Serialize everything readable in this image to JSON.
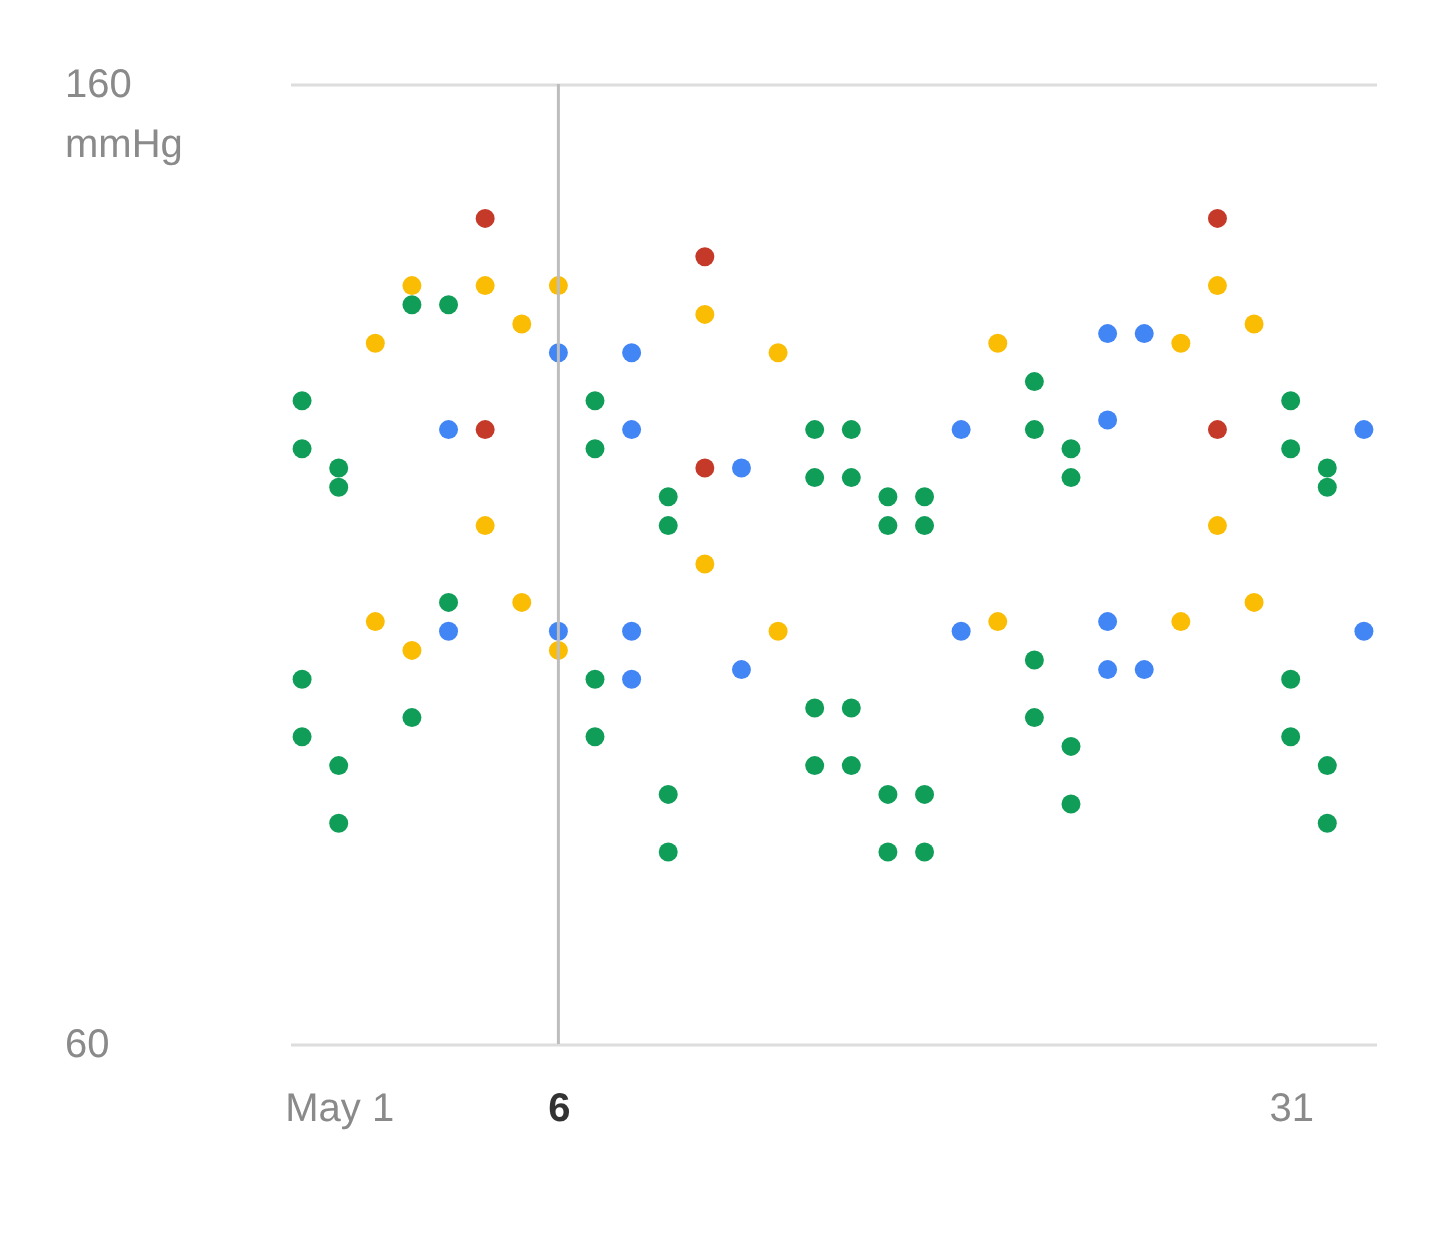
{
  "chart_data": {
    "type": "scatter",
    "ylabel": "mmHg",
    "ylim": [
      60,
      160
    ],
    "yticks": [
      60,
      160
    ],
    "marker": "circle",
    "categories": [
      null,
      "May 1",
      null,
      null,
      null,
      null,
      null,
      "6",
      null,
      null,
      null,
      null,
      null,
      null,
      null,
      null,
      null,
      null,
      null,
      null,
      null,
      null,
      null,
      null,
      null,
      null,
      null,
      "31",
      null,
      null
    ],
    "ref_lines": [
      {
        "axis": "x",
        "value": "6",
        "color": "#bdbdbd"
      }
    ],
    "series": [
      {
        "color": "#0f9d58",
        "values": [
          127,
          120,
          null,
          137,
          137,
          null,
          null,
          null,
          127,
          null,
          117,
          null,
          null,
          null,
          124,
          124,
          117,
          117,
          null,
          null,
          129,
          122,
          null,
          null,
          null,
          null,
          null,
          127,
          120,
          null
        ]
      },
      {
        "color": "#0f9d58",
        "values": [
          122,
          118,
          null,
          null,
          null,
          null,
          null,
          null,
          122,
          null,
          114,
          null,
          null,
          null,
          119,
          119,
          114,
          114,
          null,
          null,
          124,
          119,
          null,
          null,
          null,
          null,
          null,
          122,
          118,
          null
        ]
      },
      {
        "color": "#0f9d58",
        "values": [
          98,
          89,
          null,
          94,
          106,
          null,
          null,
          null,
          98,
          null,
          86,
          null,
          null,
          null,
          95,
          95,
          86,
          86,
          null,
          null,
          100,
          91,
          null,
          null,
          null,
          null,
          null,
          98,
          89,
          null
        ]
      },
      {
        "color": "#0f9d58",
        "values": [
          92,
          83,
          null,
          null,
          null,
          null,
          null,
          null,
          92,
          null,
          80,
          null,
          null,
          null,
          89,
          89,
          80,
          80,
          null,
          null,
          94,
          85,
          null,
          null,
          null,
          null,
          null,
          92,
          83,
          null
        ]
      },
      {
        "color": "#4285f4",
        "values": [
          null,
          null,
          null,
          null,
          124,
          null,
          null,
          132,
          null,
          132,
          null,
          null,
          120,
          null,
          null,
          null,
          null,
          null,
          124,
          null,
          null,
          null,
          134,
          134,
          null,
          null,
          null,
          null,
          null,
          124
        ]
      },
      {
        "color": "#4285f4",
        "values": [
          null,
          null,
          null,
          null,
          null,
          null,
          null,
          null,
          null,
          124,
          null,
          null,
          null,
          null,
          null,
          null,
          null,
          null,
          null,
          null,
          null,
          null,
          125,
          null,
          null,
          null,
          null,
          null,
          null,
          null
        ]
      },
      {
        "color": "#4285f4",
        "values": [
          null,
          null,
          null,
          null,
          103,
          null,
          null,
          103,
          null,
          103,
          null,
          null,
          99,
          null,
          null,
          null,
          null,
          null,
          103,
          null,
          null,
          null,
          104,
          99,
          null,
          null,
          null,
          null,
          null,
          103
        ]
      },
      {
        "color": "#4285f4",
        "values": [
          null,
          null,
          null,
          null,
          null,
          null,
          null,
          null,
          null,
          98,
          null,
          null,
          null,
          null,
          null,
          null,
          null,
          null,
          null,
          null,
          null,
          null,
          99,
          null,
          null,
          null,
          null,
          null,
          null,
          null
        ]
      },
      {
        "color": "#fbbc04",
        "values": [
          null,
          null,
          133,
          139,
          null,
          139,
          135,
          139,
          null,
          null,
          null,
          136,
          null,
          132,
          null,
          null,
          null,
          null,
          null,
          133,
          null,
          null,
          null,
          null,
          133,
          139,
          135,
          null,
          null,
          null
        ]
      },
      {
        "color": "#fbbc04",
        "values": [
          null,
          null,
          104,
          101,
          null,
          114,
          106,
          101,
          null,
          null,
          null,
          110,
          null,
          103,
          null,
          null,
          null,
          null,
          null,
          104,
          null,
          null,
          null,
          null,
          104,
          114,
          106,
          null,
          null,
          null
        ]
      },
      {
        "color": "#c53929",
        "values": [
          null,
          null,
          null,
          null,
          null,
          146,
          null,
          null,
          null,
          null,
          null,
          142,
          null,
          null,
          null,
          null,
          null,
          null,
          null,
          null,
          null,
          null,
          null,
          null,
          null,
          146,
          null,
          null,
          null,
          null
        ]
      },
      {
        "color": "#c53929",
        "values": [
          null,
          null,
          null,
          null,
          null,
          124,
          null,
          null,
          null,
          null,
          null,
          120,
          null,
          null,
          null,
          null,
          null,
          null,
          null,
          null,
          null,
          null,
          null,
          null,
          null,
          124,
          null,
          null,
          null,
          null
        ]
      }
    ]
  }
}
